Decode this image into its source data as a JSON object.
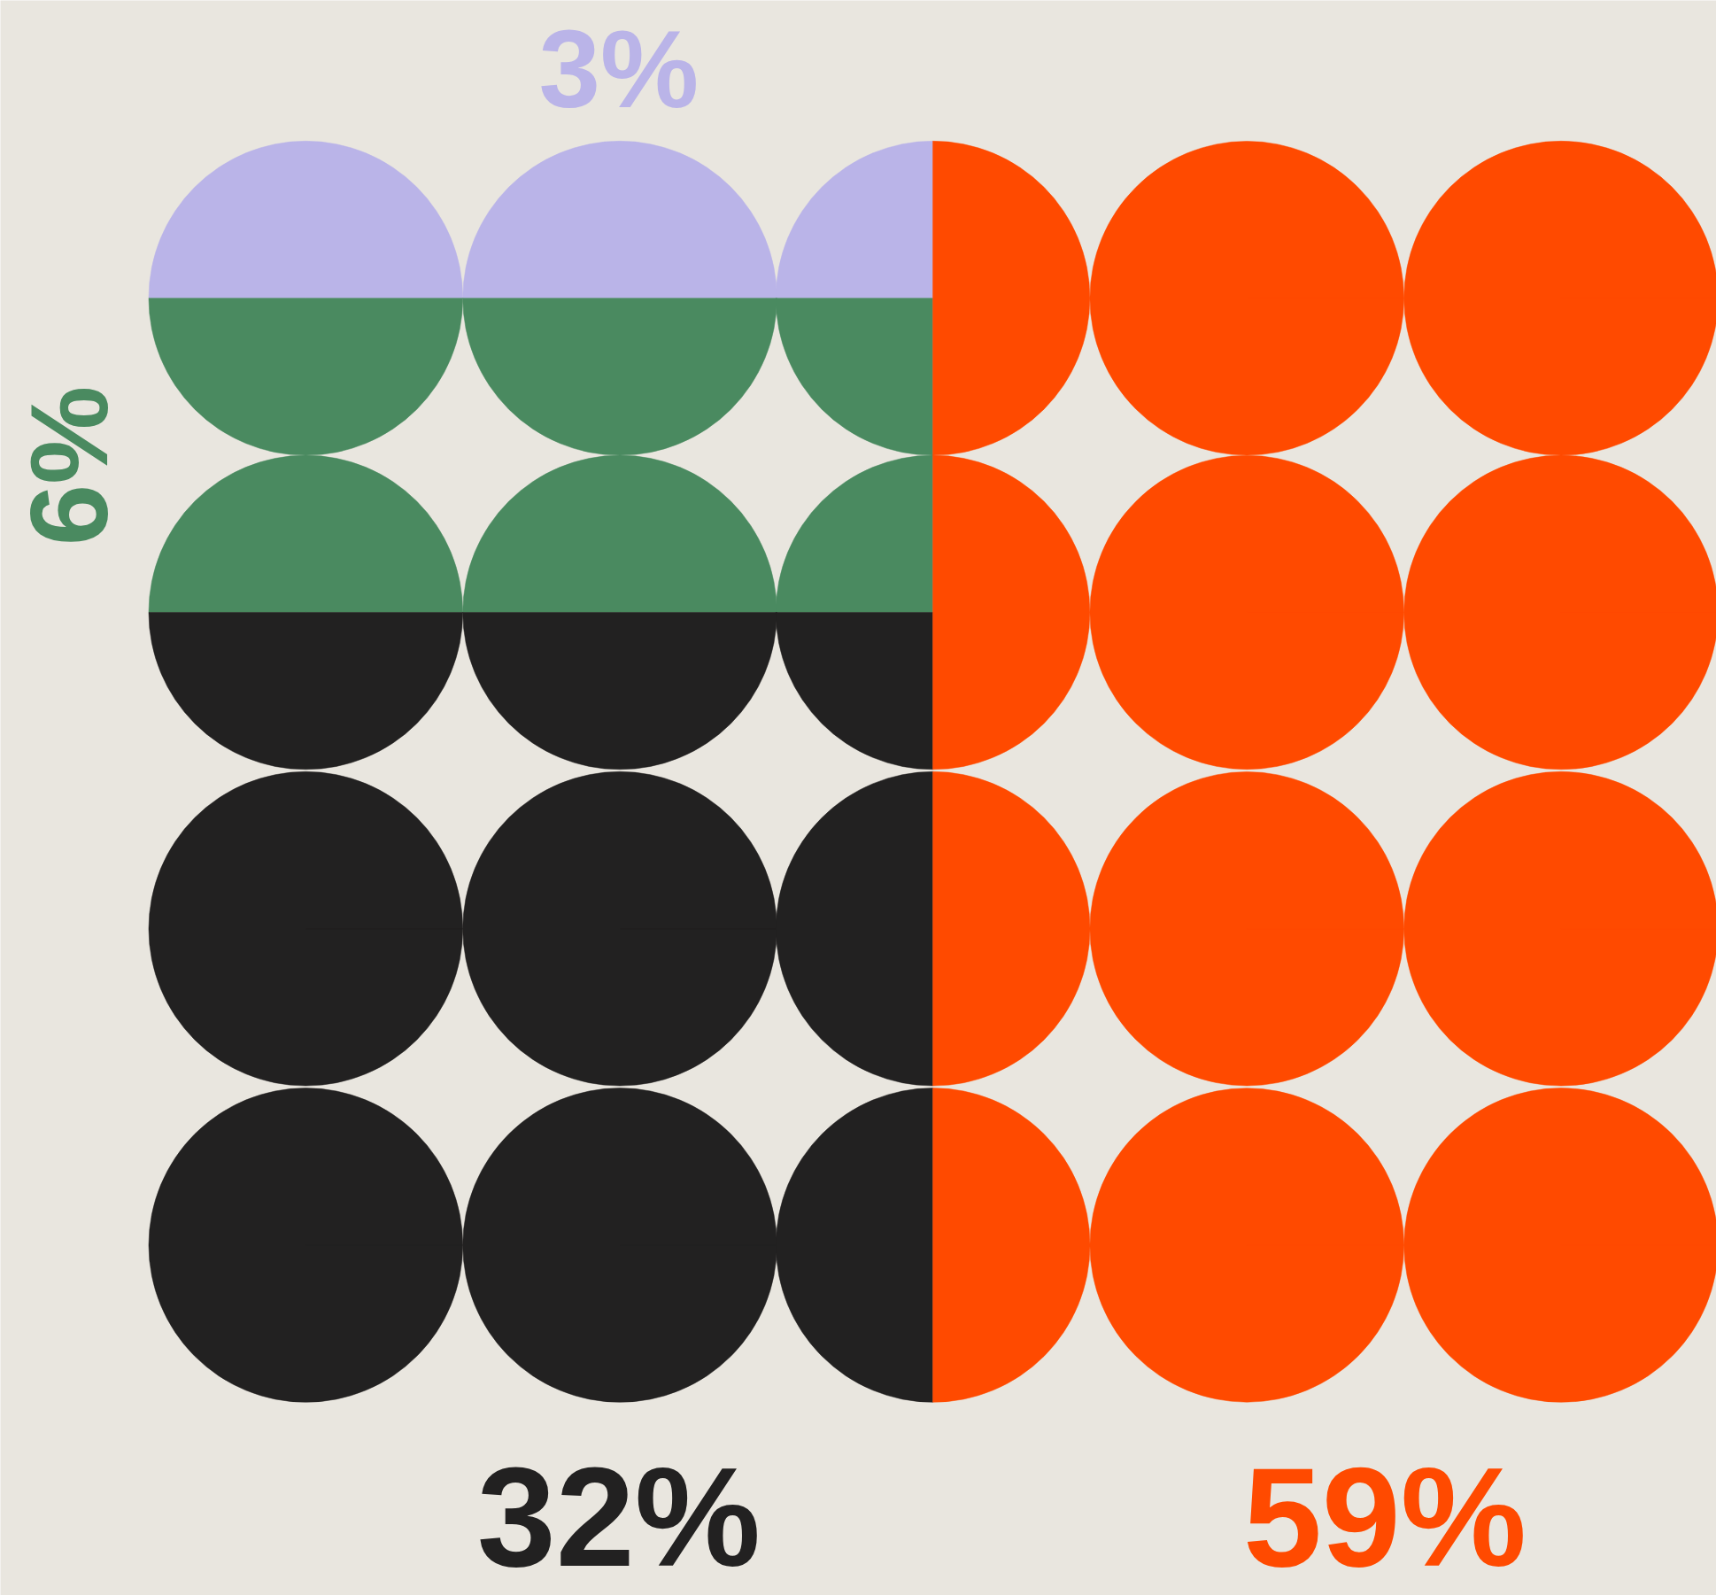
{
  "chart_data": {
    "type": "other",
    "categories": [
      null,
      null,
      null,
      null
    ],
    "values": [
      3,
      6,
      32,
      59
    ],
    "value_labels": [
      "3%",
      "6%",
      "32%",
      "59%"
    ],
    "colors": [
      "#bab4e8",
      "#4a8a60",
      "#222121",
      "#ff4a00"
    ]
  }
}
